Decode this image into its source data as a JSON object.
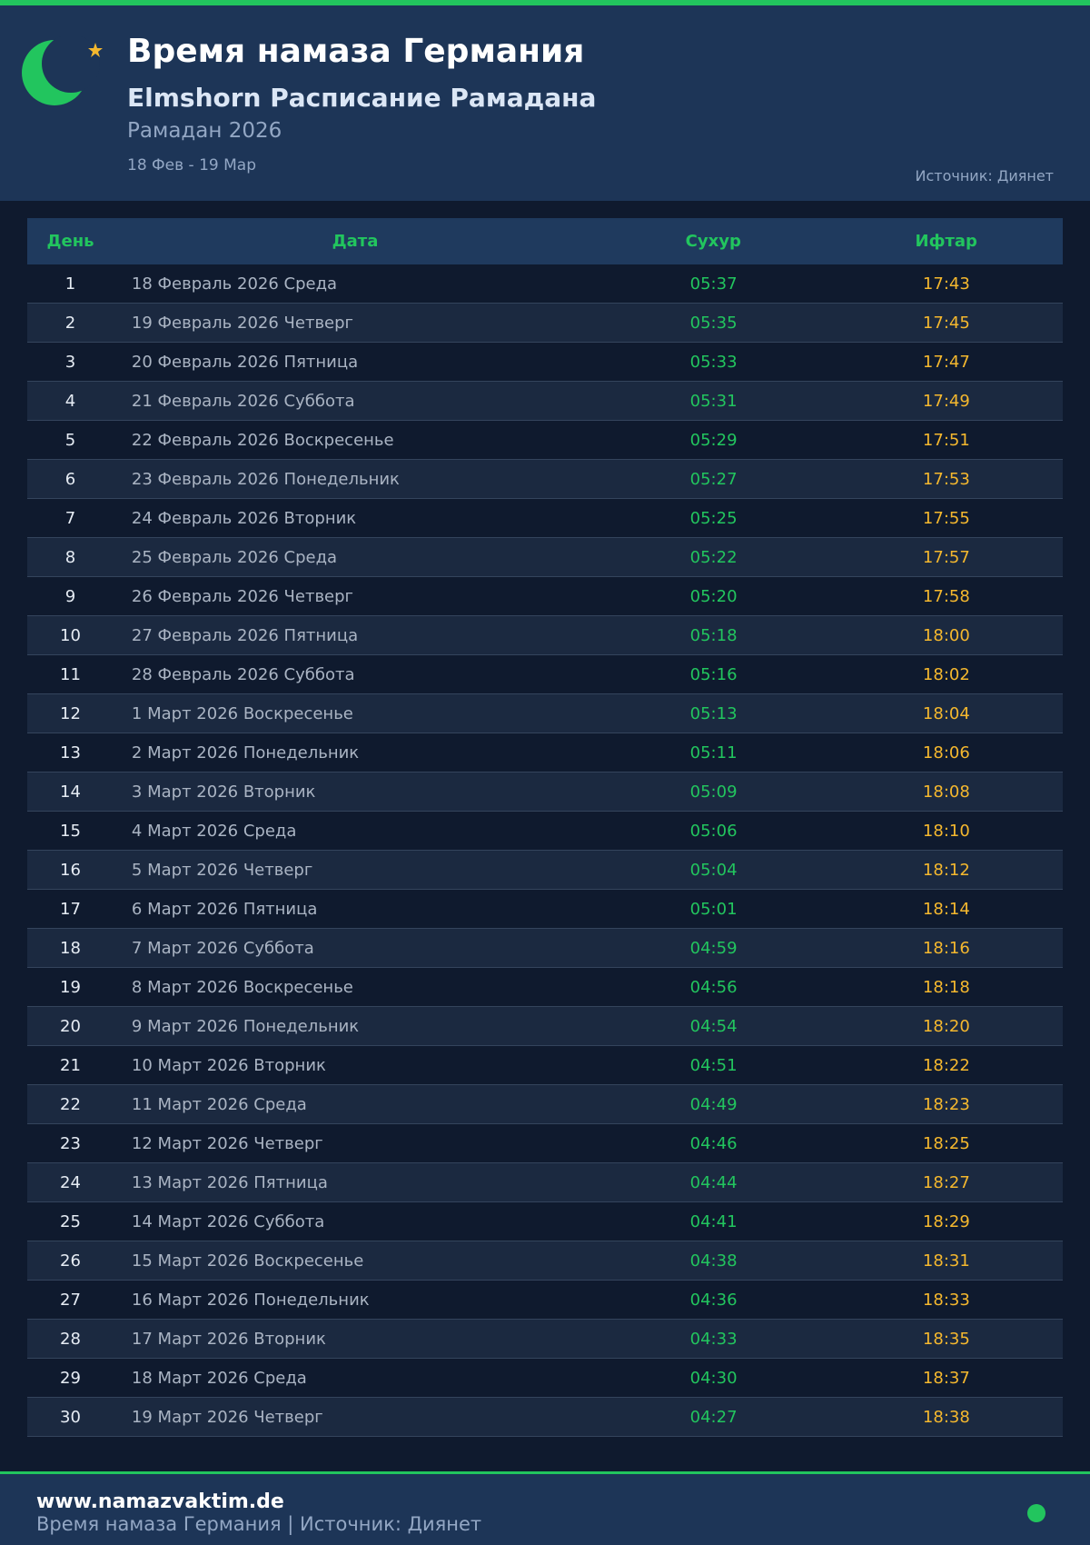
{
  "header": {
    "title": "Время намаза Германия",
    "subtitle": "Elmshorn Расписание Рамадана",
    "period": "Рамадан 2026",
    "dates": "18 Фев - 19 Мар",
    "source": "Источник: Диянет"
  },
  "table": {
    "columns": [
      "День",
      "Дата",
      "Сухур",
      "Ифтар"
    ],
    "rows": [
      [
        "1",
        "18 Февраль 2026 Среда",
        "05:37",
        "17:43"
      ],
      [
        "2",
        "19 Февраль 2026 Четверг",
        "05:35",
        "17:45"
      ],
      [
        "3",
        "20 Февраль 2026 Пятница",
        "05:33",
        "17:47"
      ],
      [
        "4",
        "21 Февраль 2026 Суббота",
        "05:31",
        "17:49"
      ],
      [
        "5",
        "22 Февраль 2026 Воскресенье",
        "05:29",
        "17:51"
      ],
      [
        "6",
        "23 Февраль 2026 Понедельник",
        "05:27",
        "17:53"
      ],
      [
        "7",
        "24 Февраль 2026 Вторник",
        "05:25",
        "17:55"
      ],
      [
        "8",
        "25 Февраль 2026 Среда",
        "05:22",
        "17:57"
      ],
      [
        "9",
        "26 Февраль 2026 Четверг",
        "05:20",
        "17:58"
      ],
      [
        "10",
        "27 Февраль 2026 Пятница",
        "05:18",
        "18:00"
      ],
      [
        "11",
        "28 Февраль 2026 Суббота",
        "05:16",
        "18:02"
      ],
      [
        "12",
        "1 Март 2026 Воскресенье",
        "05:13",
        "18:04"
      ],
      [
        "13",
        "2 Март 2026 Понедельник",
        "05:11",
        "18:06"
      ],
      [
        "14",
        "3 Март 2026 Вторник",
        "05:09",
        "18:08"
      ],
      [
        "15",
        "4 Март 2026 Среда",
        "05:06",
        "18:10"
      ],
      [
        "16",
        "5 Март 2026 Четверг",
        "05:04",
        "18:12"
      ],
      [
        "17",
        "6 Март 2026 Пятница",
        "05:01",
        "18:14"
      ],
      [
        "18",
        "7 Март 2026 Суббота",
        "04:59",
        "18:16"
      ],
      [
        "19",
        "8 Март 2026 Воскресенье",
        "04:56",
        "18:18"
      ],
      [
        "20",
        "9 Март 2026 Понедельник",
        "04:54",
        "18:20"
      ],
      [
        "21",
        "10 Март 2026 Вторник",
        "04:51",
        "18:22"
      ],
      [
        "22",
        "11 Март 2026 Среда",
        "04:49",
        "18:23"
      ],
      [
        "23",
        "12 Март 2026 Четверг",
        "04:46",
        "18:25"
      ],
      [
        "24",
        "13 Март 2026 Пятница",
        "04:44",
        "18:27"
      ],
      [
        "25",
        "14 Март 2026 Суббота",
        "04:41",
        "18:29"
      ],
      [
        "26",
        "15 Март 2026 Воскресенье",
        "04:38",
        "18:31"
      ],
      [
        "27",
        "16 Март 2026 Понедельник",
        "04:36",
        "18:33"
      ],
      [
        "28",
        "17 Март 2026 Вторник",
        "04:33",
        "18:35"
      ],
      [
        "29",
        "18 Март 2026 Среда",
        "04:30",
        "18:37"
      ],
      [
        "30",
        "19 Март 2026 Четверг",
        "04:27",
        "18:38"
      ]
    ]
  },
  "footer": {
    "site": "www.namazvaktim.de",
    "text": "Время намаза Германия | Источник: Диянет"
  }
}
